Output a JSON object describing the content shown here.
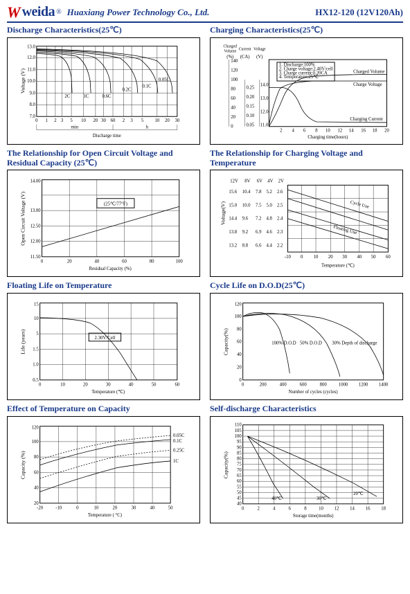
{
  "header": {
    "logo_mark": "W",
    "logo_text": "weida",
    "reg": "®",
    "company": "Huaxiang Power Technology Co., Ltd.",
    "model": "HX12-120 (12V120Ah)"
  },
  "charts": {
    "discharge": {
      "title": "Discharge Characteristics(25℃)",
      "ylabel": "Voltage (V)",
      "yticks": [
        "7.0",
        "8.0",
        "9.0",
        "10.0",
        "11.0",
        "12.0",
        "13.0"
      ],
      "x1label": "min",
      "x2label": "h",
      "xaxis_label": "Discharge time",
      "x1ticks": [
        "0",
        "1",
        "2",
        "3",
        "5",
        "10",
        "20",
        "30",
        "60"
      ],
      "x2ticks": [
        "2",
        "3",
        "5",
        "10",
        "20",
        "30"
      ],
      "rate_labels": [
        "2C",
        "1C",
        "0.6C",
        "0.2C",
        "0.1C",
        "0.05C"
      ]
    },
    "charging": {
      "title": "Charging Characteristics(25℃)",
      "ylabels": [
        "Charged\nVolume",
        "Current",
        "Voltage"
      ],
      "yunits": [
        "(%)",
        "(CA)",
        "(V)"
      ],
      "y1ticks": [
        "0",
        "20",
        "40",
        "60",
        "80",
        "100",
        "120",
        "140"
      ],
      "y2ticks": [
        "0.05",
        "0.10",
        "0.15",
        "0.20",
        "0.25"
      ],
      "y3ticks": [
        "11.0",
        "12.0",
        "13.0",
        "14.0"
      ],
      "xlabel": "Charging time(hours)",
      "xticks": [
        "2",
        "4",
        "6",
        "8",
        "10",
        "12",
        "14",
        "16",
        "18",
        "20"
      ],
      "legend": [
        "1. Discharge:100%",
        "2. Charge voltage:2.40V/cell",
        "3. Charge current:0.20CA",
        "4. Temperature:25℃"
      ],
      "curve_labels": [
        "Charged Volume",
        "Charge Voltage",
        "Charging Current"
      ]
    },
    "ocv": {
      "title": "The Relationship for Open Circuit Voltage and Residual Capacity (25℃)",
      "ylabel": "Open Circuit Voltage (V)",
      "yticks": [
        "11.50",
        "12.00",
        "12.50",
        "13.00",
        "14.00"
      ],
      "xlabel": "Residual Capacity (%)",
      "xticks": [
        "0",
        "20",
        "40",
        "60",
        "80",
        "100"
      ],
      "center_label": "(25℃/77°F)"
    },
    "cvtemp": {
      "title": "The Relationship for Charging Voltage and Temperature",
      "colheads": [
        "12V",
        "8V",
        "6V",
        "4V",
        "2V"
      ],
      "rows": [
        [
          "15.6",
          "10.4",
          "7.8",
          "5.2",
          "2.6"
        ],
        [
          "15.0",
          "10.0",
          "7.5",
          "5.0",
          "2.5"
        ],
        [
          "14.4",
          "9.6",
          "7.2",
          "4.8",
          "2.4"
        ],
        [
          "13.8",
          "9.2",
          "6.9",
          "4.6",
          "2.3"
        ],
        [
          "13.2",
          "8.8",
          "6.6",
          "4.4",
          "2.2"
        ]
      ],
      "ylabel": "Voltage(V)",
      "xlabel": "Temperature (℃)",
      "xticks": [
        "-10",
        "0",
        "10",
        "20",
        "30",
        "40",
        "50",
        "60"
      ],
      "curve_labels": [
        "Cycle Use",
        "Floating Use"
      ]
    },
    "floatlife": {
      "title": "Floating Life on Temperature",
      "ylabel": "Life (years)",
      "yticks": [
        "0.5",
        "1.0",
        "1.5",
        "5",
        "10",
        "15"
      ],
      "xlabel": "Temperature (℃)",
      "xticks": [
        "0",
        "10",
        "20",
        "30",
        "40",
        "50",
        "60"
      ],
      "inner_label": "2.30V/Cell"
    },
    "cyclelife": {
      "title": "Cycle Life on D.O.D(25℃)",
      "ylabel": "Capacity(%)",
      "yticks": [
        "0",
        "20",
        "40",
        "60",
        "80",
        "100",
        "120"
      ],
      "xlabel": "Number of cycles (cycles)",
      "xticks": [
        "0",
        "200",
        "400",
        "600",
        "800",
        "1000",
        "1200",
        "1400"
      ],
      "curve_labels": [
        "100% D.O.D",
        "50% D.O.D",
        "30% Depth of discharge"
      ]
    },
    "tempeffect": {
      "title": "Effect of Temperature on Capacity",
      "ylabel": "Capacity (%)",
      "yticks": [
        "20",
        "40",
        "60",
        "80",
        "100",
        "120"
      ],
      "xlabel": "Temperature ( °C)",
      "xticks": [
        "-20",
        "-10",
        "0",
        "10",
        "20",
        "30",
        "40",
        "50"
      ],
      "curve_labels": [
        "0.05C",
        "0.1C",
        "0.25C",
        "1C"
      ]
    },
    "selfdis": {
      "title": "Self-discharge Characteristics",
      "ylabel": "Capacity(%)",
      "yticks": [
        "40",
        "45",
        "50",
        "55",
        "60",
        "65",
        "70",
        "75",
        "80",
        "85",
        "90",
        "95",
        "100",
        "105",
        "110"
      ],
      "xlabel": "Storage time(months)",
      "xticks": [
        "0",
        "2",
        "4",
        "6",
        "8",
        "10",
        "12",
        "14",
        "16",
        "18"
      ],
      "curve_labels": [
        "40℃",
        "30℃",
        "20℃"
      ]
    }
  }
}
